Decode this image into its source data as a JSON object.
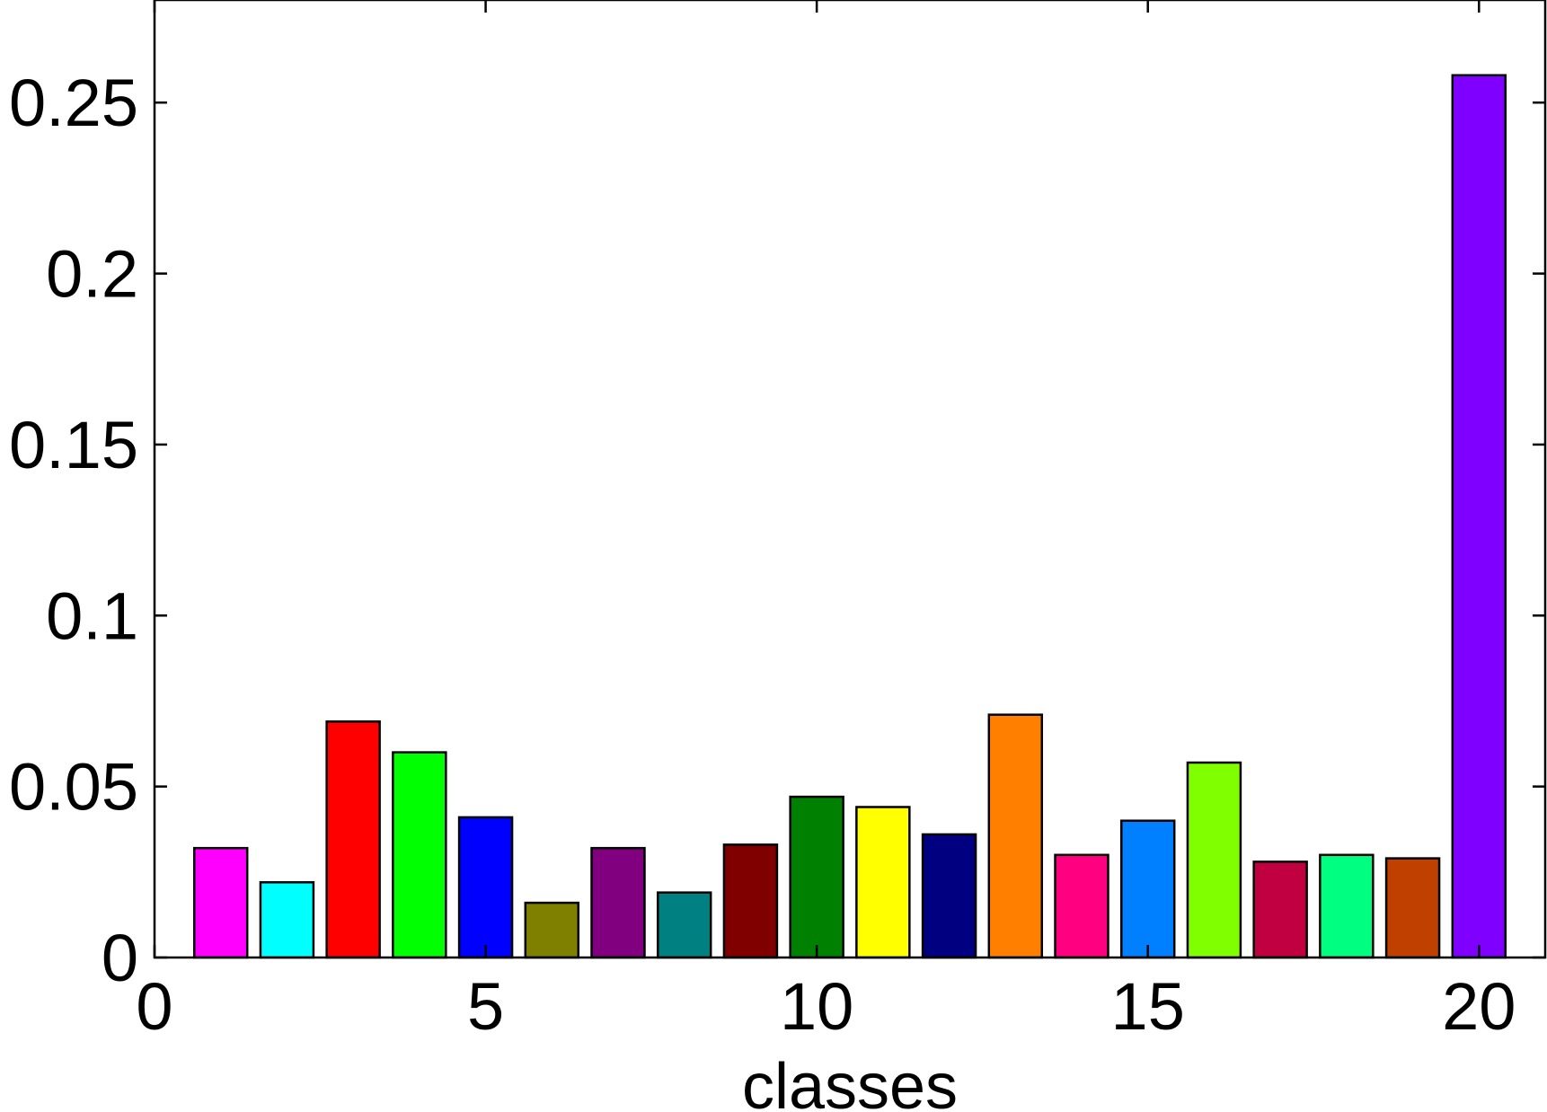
{
  "chart_data": {
    "type": "bar",
    "title": "",
    "xlabel": "classes",
    "ylabel": "",
    "xlim": [
      0,
      21
    ],
    "ylim": [
      0,
      0.28
    ],
    "xticks": [
      0,
      5,
      10,
      15,
      20
    ],
    "xtick_labels": [
      "0",
      "5",
      "10",
      "15",
      "20"
    ],
    "yticks": [
      0,
      0.05,
      0.1,
      0.15,
      0.2,
      0.25
    ],
    "ytick_labels": [
      "0",
      "0.05",
      "0.1",
      "0.15",
      "0.2",
      "0.25"
    ],
    "grid": false,
    "x": [
      1,
      2,
      3,
      4,
      5,
      6,
      7,
      8,
      9,
      10,
      11,
      12,
      13,
      14,
      15,
      16,
      17,
      18,
      19,
      20
    ],
    "values": [
      0.032,
      0.022,
      0.069,
      0.06,
      0.041,
      0.016,
      0.032,
      0.019,
      0.033,
      0.047,
      0.044,
      0.036,
      0.071,
      0.03,
      0.04,
      0.057,
      0.028,
      0.03,
      0.029,
      0.258
    ],
    "colors": [
      "#ff00ff",
      "#00ffff",
      "#ff0000",
      "#00ff00",
      "#0000ff",
      "#808000",
      "#800080",
      "#008080",
      "#800000",
      "#008000",
      "#ffff00",
      "#000080",
      "#ff8000",
      "#ff0080",
      "#0080ff",
      "#80ff00",
      "#c00040",
      "#00ff80",
      "#c04000",
      "#8000ff"
    ]
  }
}
